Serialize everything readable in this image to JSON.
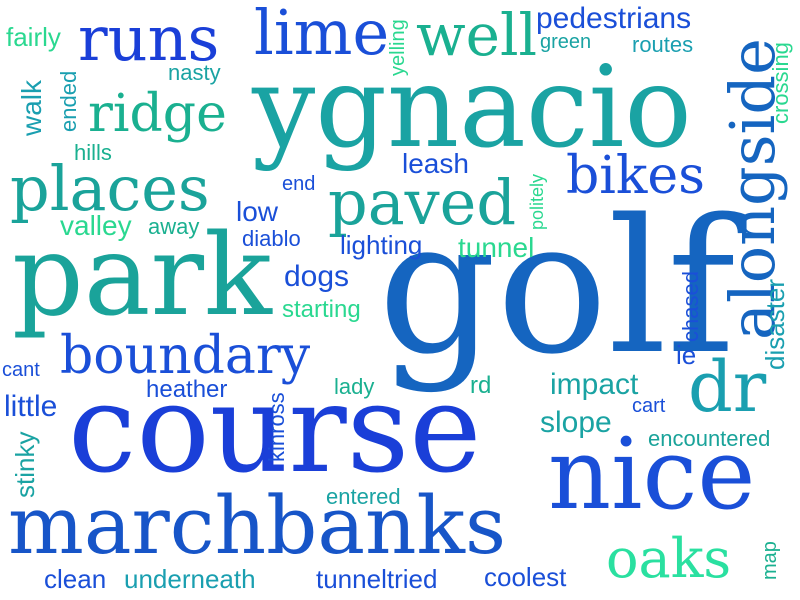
{
  "words": [
    {
      "text": "golf",
      "color": "#1565c0"
    },
    {
      "text": "course",
      "color": "#1a3fd8"
    },
    {
      "text": "ygnacio",
      "color": "#1aa3a3"
    },
    {
      "text": "park",
      "color": "#1aa39a"
    },
    {
      "text": "nice",
      "color": "#1a4fd8"
    },
    {
      "text": "marchbanks",
      "color": "#1755c8"
    },
    {
      "text": "alongside",
      "color": "#1565c0"
    },
    {
      "text": "dr",
      "color": "#1a9fb0"
    },
    {
      "text": "places",
      "color": "#1aa39a"
    },
    {
      "text": "boundary",
      "color": "#1a4fd8"
    },
    {
      "text": "paved",
      "color": "#1aa39a"
    },
    {
      "text": "runs",
      "color": "#1a3fd8"
    },
    {
      "text": "lime",
      "color": "#1a4fd8"
    },
    {
      "text": "well",
      "color": "#1ab090"
    },
    {
      "text": "ridge",
      "color": "#1ab090"
    },
    {
      "text": "bikes",
      "color": "#1a4fd8"
    },
    {
      "text": "oaks",
      "color": "#2ae0a0"
    },
    {
      "text": "pedestrians",
      "color": "#1a4fd8"
    },
    {
      "text": "fairly",
      "color": "#2ad890"
    },
    {
      "text": "green",
      "color": "#1aa3a3"
    },
    {
      "text": "routes",
      "color": "#1a9fb0"
    },
    {
      "text": "yelling",
      "color": "#2ad890"
    },
    {
      "text": "nasty",
      "color": "#1aa3a3"
    },
    {
      "text": "walk",
      "color": "#1a9fb0"
    },
    {
      "text": "ended",
      "color": "#1a9fb0"
    },
    {
      "text": "hills",
      "color": "#1ab090"
    },
    {
      "text": "crossing",
      "color": "#2ad890"
    },
    {
      "text": "leash",
      "color": "#1a4fd8"
    },
    {
      "text": "end",
      "color": "#1a4fd8"
    },
    {
      "text": "politely",
      "color": "#2ad890"
    },
    {
      "text": "valley",
      "color": "#2ad890"
    },
    {
      "text": "away",
      "color": "#1ab090"
    },
    {
      "text": "low",
      "color": "#1a4fd8"
    },
    {
      "text": "diablo",
      "color": "#1a4fd8"
    },
    {
      "text": "lighting",
      "color": "#1a4fd8"
    },
    {
      "text": "tunnel",
      "color": "#2ad890"
    },
    {
      "text": "dogs",
      "color": "#1a4fd8"
    },
    {
      "text": "starting",
      "color": "#2ad890"
    },
    {
      "text": "chased",
      "color": "#1a4fd8"
    },
    {
      "text": "disaster",
      "color": "#1a9fb0"
    },
    {
      "text": "ie",
      "color": "#1a4fd8"
    },
    {
      "text": "cant",
      "color": "#1a4fd8"
    },
    {
      "text": "heather",
      "color": "#1a4fd8"
    },
    {
      "text": "lady",
      "color": "#1ab090"
    },
    {
      "text": "rd",
      "color": "#1ab090"
    },
    {
      "text": "impact",
      "color": "#1aa3a3"
    },
    {
      "text": "little",
      "color": "#1a4fd8"
    },
    {
      "text": "kinross",
      "color": "#1a4fd8"
    },
    {
      "text": "slope",
      "color": "#1aa3a3"
    },
    {
      "text": "cart",
      "color": "#1a4fd8"
    },
    {
      "text": "encountered",
      "color": "#1aa39a"
    },
    {
      "text": "stinky",
      "color": "#1aa3a3"
    },
    {
      "text": "entered",
      "color": "#1aa3a3"
    },
    {
      "text": "map",
      "color": "#1ab090"
    },
    {
      "text": "clean",
      "color": "#1a4fd8"
    },
    {
      "text": "underneath",
      "color": "#1a9fb0"
    },
    {
      "text": "tunneltried",
      "color": "#1a4fd8"
    },
    {
      "text": "coolest",
      "color": "#1a4fd8"
    }
  ]
}
